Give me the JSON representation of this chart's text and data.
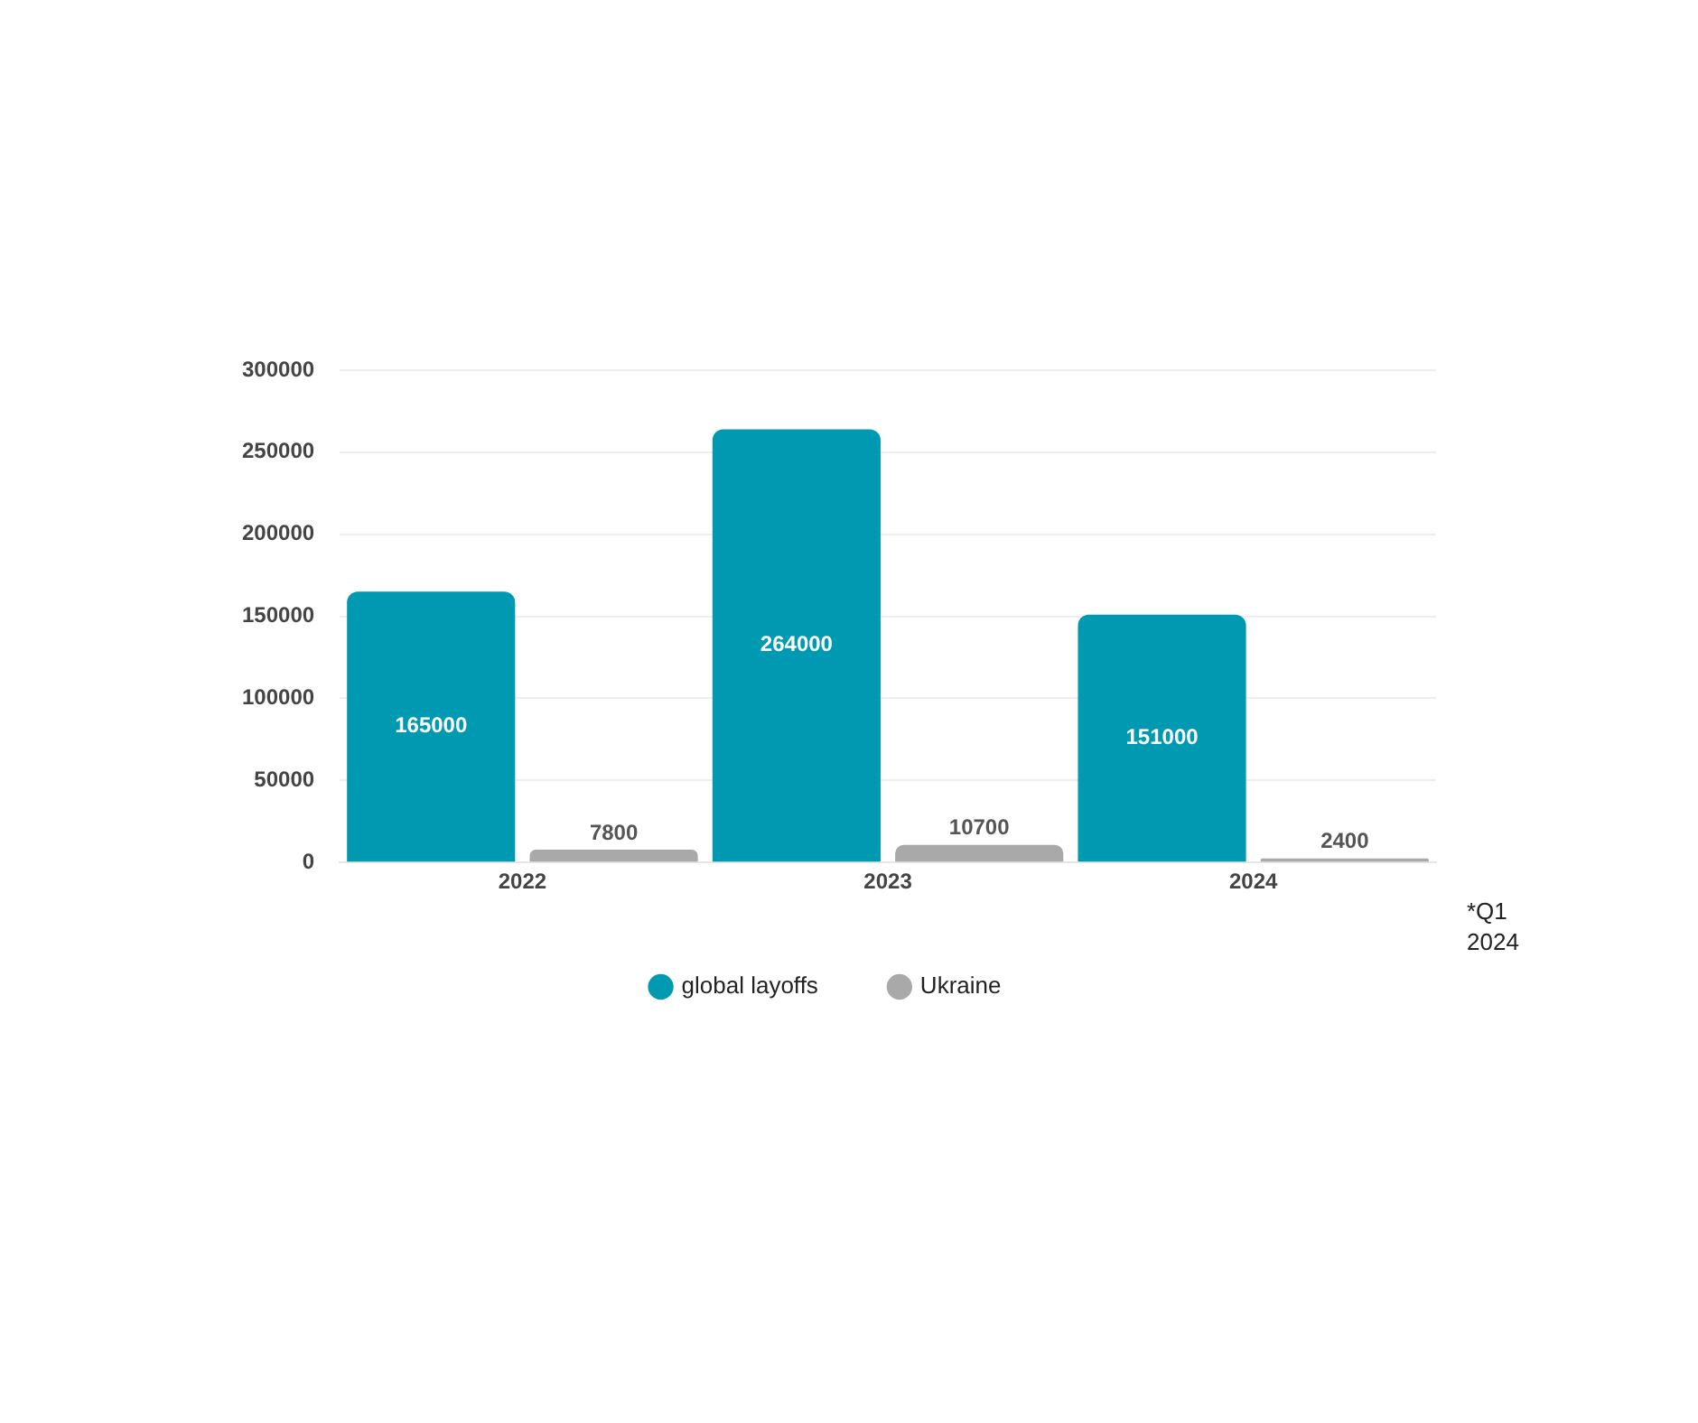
{
  "chart_data": {
    "type": "bar",
    "categories": [
      "2022",
      "2023",
      "2024"
    ],
    "series": [
      {
        "name": "global layoffs",
        "color": "#0099b2",
        "values": [
          165000,
          264000,
          151000
        ]
      },
      {
        "name": "Ukraine",
        "color": "#a9a9a9",
        "values": [
          7800,
          10700,
          2400
        ]
      }
    ],
    "ylim": [
      0,
      300000
    ],
    "yticks": [
      0,
      50000,
      100000,
      150000,
      200000,
      250000,
      300000
    ],
    "grid": "y",
    "legend": "bottom",
    "data_labels": true,
    "annotations": [
      "*Q1 2024"
    ]
  }
}
